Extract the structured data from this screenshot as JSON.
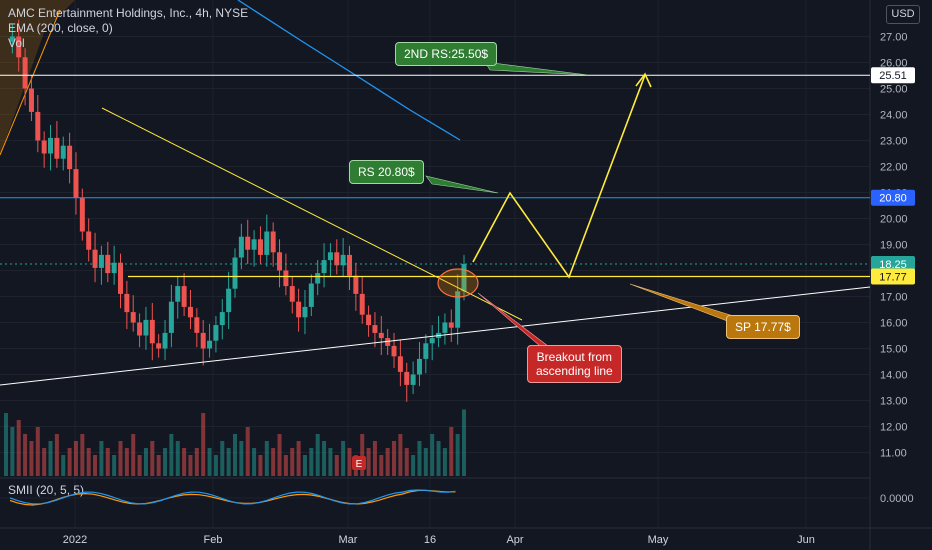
{
  "legend": {
    "symbol_line": "AMC Entertainment Holdings, Inc., 4h, NYSE",
    "ema_line": "EMA (200, close, 0)",
    "vol_line": "Vol",
    "smii_line": "SMII (20, 5, 5)"
  },
  "currency_button": "USD",
  "colors": {
    "background": "#131722",
    "grid": "#1e222d",
    "up": "#26a69a",
    "down": "#ef5350",
    "ema": "#2196f3",
    "annotation": "#ffeb3b",
    "support_line": "#ffffff",
    "smii_main": "#2196f3",
    "smii_signal": "#ff9800"
  },
  "callouts": {
    "rs2": "2ND RS:25.50$",
    "rs1": "RS 20.80$",
    "breakout": [
      "Breakout from",
      "ascending line"
    ],
    "sp": "SP 17.77$"
  },
  "price_badges": [
    {
      "label": "25.51",
      "value": 25.51,
      "style": "white"
    },
    {
      "label": "20.80",
      "value": 20.8,
      "style": "blue"
    },
    {
      "label": "18.25",
      "value": 18.25,
      "style": "teal"
    },
    {
      "label": "17.77",
      "value": 17.77,
      "style": "yellow"
    }
  ],
  "chart_data": {
    "type": "candlestick",
    "title": "AMC Entertainment Holdings, Inc., 4h, NYSE",
    "y_axis": {
      "ticks": [
        "27.00",
        "26.00",
        "25.00",
        "24.00",
        "23.00",
        "22.00",
        "21.00",
        "20.00",
        "19.00",
        "18.00",
        "17.00",
        "16.00",
        "15.00",
        "14.00",
        "13.00",
        "12.00",
        "11.00"
      ],
      "range": [
        10.6,
        28.4
      ]
    },
    "x_axis": {
      "ticks": [
        "2022",
        "Feb",
        "Mar",
        "16",
        "Apr",
        "May",
        "Jun"
      ]
    },
    "smii": {
      "label": "SMII (20, 5, 5)",
      "tick": "0.0000"
    },
    "levels": {
      "second_resistance": 25.51,
      "resistance": 20.8,
      "support": 17.77,
      "last_price": 18.25
    },
    "price_path": [
      26.8,
      27.0,
      26.2,
      25.0,
      24.1,
      23.0,
      22.5,
      23.1,
      22.3,
      22.8,
      21.9,
      20.8,
      19.5,
      18.8,
      18.1,
      18.6,
      17.9,
      18.3,
      17.1,
      16.4,
      16.0,
      15.5,
      16.1,
      15.2,
      15.0,
      15.6,
      16.8,
      17.4,
      16.6,
      16.2,
      15.6,
      15.0,
      15.3,
      15.9,
      16.4,
      17.3,
      18.5,
      19.3,
      18.8,
      19.2,
      18.6,
      19.5,
      18.7,
      18.0,
      17.4,
      16.8,
      16.2,
      16.6,
      17.5,
      17.9,
      18.4,
      18.7,
      18.2,
      18.6,
      17.8,
      17.1,
      16.3,
      15.9,
      15.6,
      15.4,
      15.1,
      14.7,
      14.1,
      13.6,
      14.0,
      14.6,
      15.2,
      15.4,
      15.6,
      16.0,
      15.8,
      17.2,
      18.25
    ],
    "volume_path": [
      0.9,
      0.7,
      0.8,
      0.6,
      0.5,
      0.7,
      0.4,
      0.5,
      0.6,
      0.3,
      0.4,
      0.5,
      0.6,
      0.4,
      0.3,
      0.5,
      0.4,
      0.3,
      0.5,
      0.4,
      0.6,
      0.3,
      0.4,
      0.5,
      0.3,
      0.4,
      0.6,
      0.5,
      0.4,
      0.3,
      0.4,
      0.9,
      0.4,
      0.3,
      0.5,
      0.4,
      0.6,
      0.5,
      0.7,
      0.4,
      0.3,
      0.5,
      0.4,
      0.6,
      0.3,
      0.4,
      0.5,
      0.3,
      0.4,
      0.6,
      0.5,
      0.4,
      0.3,
      0.5,
      0.4,
      0.3,
      0.6,
      0.4,
      0.5,
      0.3,
      0.4,
      0.5,
      0.6,
      0.4,
      0.3,
      0.5,
      0.4,
      0.6,
      0.5,
      0.4,
      0.7,
      0.6,
      0.95
    ],
    "projection_path": [
      18.25,
      20.8,
      17.77,
      25.51
    ]
  }
}
